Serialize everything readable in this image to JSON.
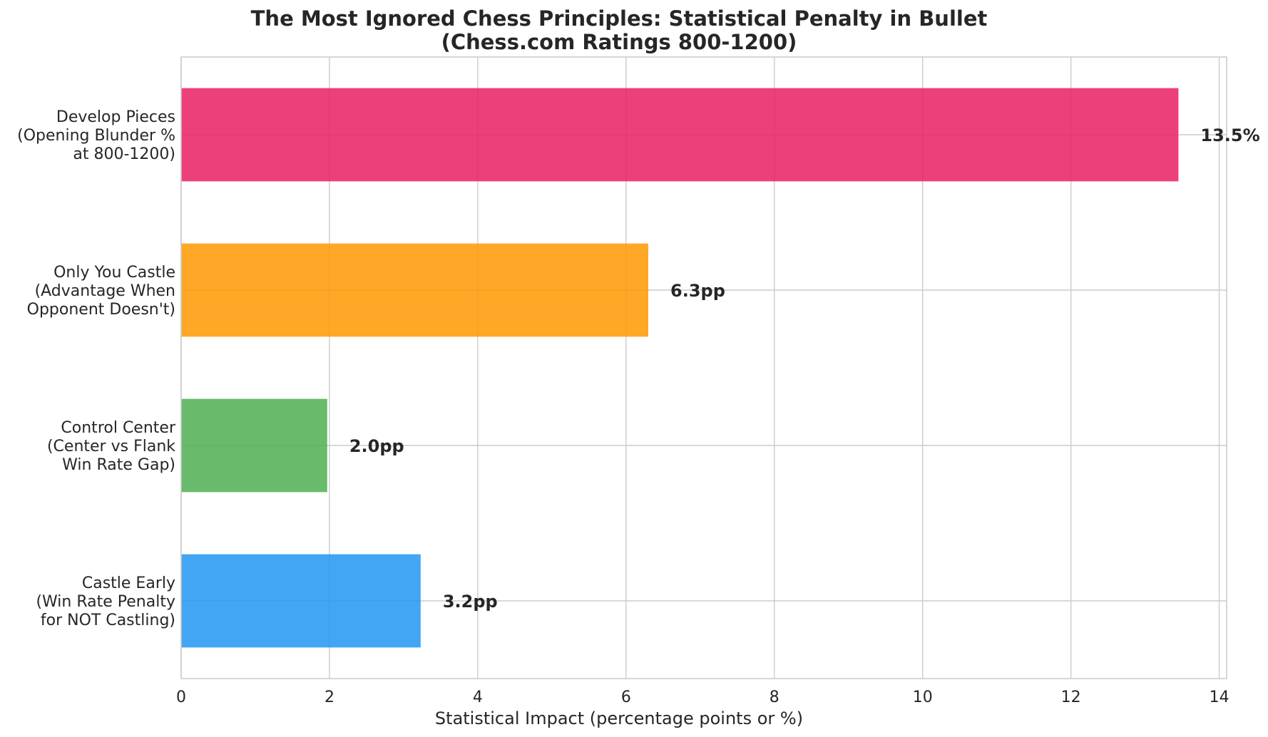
{
  "chart_data": {
    "type": "bar",
    "orientation": "horizontal",
    "title": {
      "line1": "The Most Ignored Chess Principles: Statistical Penalty in Bullet",
      "line2": "(Chess.com Ratings 800-1200)"
    },
    "xlabel": "Statistical Impact (percentage points or %)",
    "ylabel": "",
    "xlim": [
      0,
      14.1
    ],
    "xticks": [
      0,
      2,
      4,
      6,
      8,
      10,
      12,
      14
    ],
    "grid": true,
    "legend": "none",
    "bars": [
      {
        "category": [
          "Develop Pieces",
          "(Opening Blunder %",
          "at 800-1200)"
        ],
        "value": 13.45,
        "label": "13.5%",
        "color": "#e91e63"
      },
      {
        "category": [
          "Only You Castle",
          "(Advantage When",
          "Opponent Doesn't)"
        ],
        "value": 6.3,
        "label": "6.3pp",
        "color": "#ff9800"
      },
      {
        "category": [
          "Control Center",
          "(Center vs Flank",
          "Win Rate Gap)"
        ],
        "value": 1.97,
        "label": "2.0pp",
        "color": "#4caf50"
      },
      {
        "category": [
          "Castle Early",
          "(Win Rate Penalty",
          "for NOT Castling)"
        ],
        "value": 3.23,
        "label": "3.2pp",
        "color": "#2196f3"
      }
    ]
  }
}
